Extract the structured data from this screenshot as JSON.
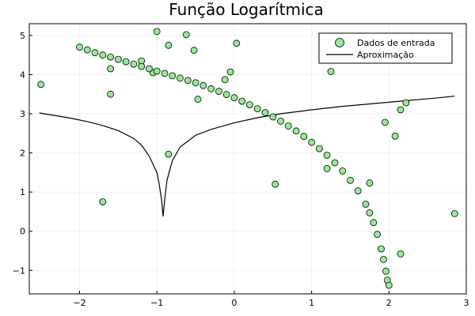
{
  "chart_data": {
    "type": "scatter",
    "title": "Função Logarítmica",
    "xlabel": "",
    "ylabel": "",
    "xlim": [
      -2.65,
      3.0
    ],
    "ylim": [
      -1.6,
      5.3
    ],
    "xticks": [
      -2,
      -1,
      0,
      1,
      2,
      3
    ],
    "yticks": [
      -1,
      0,
      1,
      2,
      3,
      4,
      5
    ],
    "xtick_labels": [
      "−2",
      "−1",
      "0",
      "1",
      "2",
      "3"
    ],
    "ytick_labels": [
      "−1",
      "0",
      "1",
      "2",
      "3",
      "4",
      "5"
    ],
    "grid": true,
    "legend_position": "top-right",
    "series": [
      {
        "name": "Dados de entrada",
        "kind": "scatter",
        "color": "#90ee90",
        "edge_color": "#000000",
        "points": [
          [
            -2.5,
            3.75
          ],
          [
            -1.7,
            0.75
          ],
          [
            -1.6,
            4.15
          ],
          [
            -1.6,
            3.5
          ],
          [
            -1.2,
            4.35
          ],
          [
            -1.05,
            4.05
          ],
          [
            -1.0,
            5.1
          ],
          [
            -0.85,
            4.75
          ],
          [
            -0.85,
            1.97
          ],
          [
            -0.62,
            5.02
          ],
          [
            -0.52,
            4.62
          ],
          [
            -0.47,
            3.37
          ],
          [
            -0.12,
            3.87
          ],
          [
            -0.05,
            4.07
          ],
          [
            0.03,
            4.8
          ],
          [
            0.53,
            1.2
          ],
          [
            1.2,
            1.6
          ],
          [
            1.25,
            4.08
          ],
          [
            1.75,
            1.23
          ],
          [
            1.95,
            2.78
          ],
          [
            2.08,
            2.43
          ],
          [
            2.15,
            3.1
          ],
          [
            2.22,
            3.28
          ],
          [
            2.15,
            -0.58
          ],
          [
            2.85,
            0.45
          ],
          [
            -2.0,
            4.7
          ],
          [
            -1.9,
            4.63
          ],
          [
            -1.8,
            4.56
          ],
          [
            -1.7,
            4.5
          ],
          [
            -1.6,
            4.45
          ],
          [
            -1.5,
            4.39
          ],
          [
            -1.4,
            4.33
          ],
          [
            -1.3,
            4.27
          ],
          [
            -1.2,
            4.21
          ],
          [
            -1.1,
            4.15
          ],
          [
            -1.0,
            4.09
          ],
          [
            -0.9,
            4.03
          ],
          [
            -0.8,
            3.97
          ],
          [
            -0.7,
            3.91
          ],
          [
            -0.6,
            3.85
          ],
          [
            -0.5,
            3.79
          ],
          [
            -0.4,
            3.72
          ],
          [
            -0.3,
            3.64
          ],
          [
            -0.2,
            3.57
          ],
          [
            -0.1,
            3.49
          ],
          [
            0.0,
            3.41
          ],
          [
            0.1,
            3.32
          ],
          [
            0.2,
            3.23
          ],
          [
            0.3,
            3.13
          ],
          [
            0.4,
            3.03
          ],
          [
            0.5,
            2.92
          ],
          [
            0.6,
            2.81
          ],
          [
            0.7,
            2.69
          ],
          [
            0.8,
            2.56
          ],
          [
            0.9,
            2.42
          ],
          [
            1.0,
            2.27
          ],
          [
            1.1,
            2.11
          ],
          [
            1.2,
            1.94
          ],
          [
            1.3,
            1.75
          ],
          [
            1.4,
            1.54
          ],
          [
            1.5,
            1.3
          ],
          [
            1.6,
            1.03
          ],
          [
            1.7,
            0.69
          ],
          [
            1.75,
            0.47
          ],
          [
            1.8,
            0.22
          ],
          [
            1.85,
            -0.08
          ],
          [
            1.9,
            -0.45
          ],
          [
            1.93,
            -0.72
          ],
          [
            1.96,
            -1.02
          ],
          [
            1.98,
            -1.25
          ],
          [
            2.0,
            -1.38
          ]
        ]
      },
      {
        "name": "Aproximação",
        "kind": "line",
        "color": "#000000",
        "points": [
          [
            -2.52,
            3.02
          ],
          [
            -2.3,
            2.95
          ],
          [
            -2.1,
            2.88
          ],
          [
            -1.9,
            2.8
          ],
          [
            -1.7,
            2.7
          ],
          [
            -1.5,
            2.57
          ],
          [
            -1.3,
            2.37
          ],
          [
            -1.2,
            2.2
          ],
          [
            -1.1,
            1.92
          ],
          [
            -1.0,
            1.5
          ],
          [
            -0.97,
            1.2
          ],
          [
            -0.94,
            0.8
          ],
          [
            -0.92,
            0.38
          ],
          [
            -0.9,
            0.8
          ],
          [
            -0.87,
            1.3
          ],
          [
            -0.8,
            1.8
          ],
          [
            -0.7,
            2.15
          ],
          [
            -0.5,
            2.45
          ],
          [
            -0.3,
            2.6
          ],
          [
            0.0,
            2.77
          ],
          [
            0.3,
            2.9
          ],
          [
            0.6,
            3.0
          ],
          [
            1.0,
            3.1
          ],
          [
            1.4,
            3.19
          ],
          [
            1.8,
            3.26
          ],
          [
            2.2,
            3.33
          ],
          [
            2.6,
            3.4
          ],
          [
            2.85,
            3.45
          ]
        ]
      }
    ]
  }
}
